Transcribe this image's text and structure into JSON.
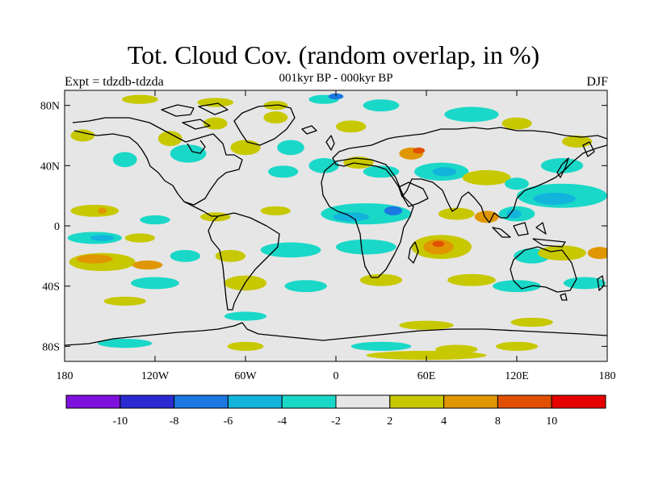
{
  "header": {
    "title": "Tot. Cloud Cov. (random overlap, in %)",
    "subtitle": "001kyr BP - 000kyr BP",
    "left_label": "Expt = tdzdb-tdzda",
    "right_label": "DJF"
  },
  "map": {
    "projection": "equirectangular",
    "lon_range": [
      -180,
      180
    ],
    "lat_range": [
      -90,
      90
    ],
    "background": "#e6e6e6",
    "lat_ticks": [
      {
        "value": 80,
        "label": "80N"
      },
      {
        "value": 40,
        "label": "40N"
      },
      {
        "value": 0,
        "label": "0"
      },
      {
        "value": -40,
        "label": "40S"
      },
      {
        "value": -80,
        "label": "80S"
      }
    ],
    "lon_ticks": [
      {
        "value": -180,
        "label": "180"
      },
      {
        "value": -120,
        "label": "120W"
      },
      {
        "value": -60,
        "label": "60W"
      },
      {
        "value": 0,
        "label": "0"
      },
      {
        "value": 60,
        "label": "60E"
      },
      {
        "value": 120,
        "label": "120E"
      },
      {
        "value": 180,
        "label": "180"
      }
    ]
  },
  "colorbar": {
    "colors": [
      "#7e12dc",
      "#2a2ad0",
      "#1a78e0",
      "#12b4dc",
      "#1ad8c8",
      "#e6e6e6",
      "#c8c800",
      "#e09600",
      "#e05000",
      "#e60000"
    ],
    "labels": [
      "-10",
      "-8",
      "-6",
      "-4",
      "-2",
      "2",
      "4",
      "8",
      "10"
    ]
  },
  "anomaly_regions": [
    {
      "lon": -168,
      "lat": 60,
      "rx": 8,
      "ry": 4,
      "cls": "pos1"
    },
    {
      "lon": -130,
      "lat": 84,
      "rx": 12,
      "ry": 3,
      "cls": "pos1"
    },
    {
      "lon": -80,
      "lat": 82,
      "rx": 12,
      "ry": 3,
      "cls": "pos1"
    },
    {
      "lon": -40,
      "lat": 80,
      "rx": 8,
      "ry": 3,
      "cls": "pos1"
    },
    {
      "lon": -8,
      "lat": 84,
      "rx": 10,
      "ry": 3,
      "cls": "neg1"
    },
    {
      "lon": 0,
      "lat": 86,
      "rx": 5,
      "ry": 2,
      "cls": "neg3"
    },
    {
      "lon": 30,
      "lat": 80,
      "rx": 12,
      "ry": 4,
      "cls": "neg1"
    },
    {
      "lon": 90,
      "lat": 74,
      "rx": 18,
      "ry": 5,
      "cls": "neg1"
    },
    {
      "lon": 120,
      "lat": 68,
      "rx": 10,
      "ry": 4,
      "cls": "pos1"
    },
    {
      "lon": -110,
      "lat": 58,
      "rx": 8,
      "ry": 5,
      "cls": "pos1"
    },
    {
      "lon": -80,
      "lat": 68,
      "rx": 8,
      "ry": 4,
      "cls": "pos1"
    },
    {
      "lon": -40,
      "lat": 72,
      "rx": 8,
      "ry": 4,
      "cls": "pos1"
    },
    {
      "lon": 10,
      "lat": 66,
      "rx": 10,
      "ry": 4,
      "cls": "pos1"
    },
    {
      "lon": -140,
      "lat": 44,
      "rx": 8,
      "ry": 5,
      "cls": "neg1"
    },
    {
      "lon": -98,
      "lat": 48,
      "rx": 12,
      "ry": 6,
      "cls": "neg1"
    },
    {
      "lon": -60,
      "lat": 52,
      "rx": 10,
      "ry": 5,
      "cls": "pos1"
    },
    {
      "lon": -30,
      "lat": 52,
      "rx": 9,
      "ry": 5,
      "cls": "neg1"
    },
    {
      "lon": -35,
      "lat": 36,
      "rx": 10,
      "ry": 4,
      "cls": "neg1"
    },
    {
      "lon": -8,
      "lat": 40,
      "rx": 10,
      "ry": 5,
      "cls": "neg1"
    },
    {
      "lon": 15,
      "lat": 42,
      "rx": 10,
      "ry": 4,
      "cls": "pos1"
    },
    {
      "lon": 30,
      "lat": 36,
      "rx": 12,
      "ry": 4,
      "cls": "neg1"
    },
    {
      "lon": 50,
      "lat": 48,
      "rx": 8,
      "ry": 4,
      "cls": "pos2"
    },
    {
      "lon": 55,
      "lat": 50,
      "rx": 4,
      "ry": 2,
      "cls": "pos3"
    },
    {
      "lon": 70,
      "lat": 36,
      "rx": 18,
      "ry": 6,
      "cls": "neg1"
    },
    {
      "lon": 72,
      "lat": 36,
      "rx": 8,
      "ry": 3,
      "cls": "neg2"
    },
    {
      "lon": 100,
      "lat": 32,
      "rx": 16,
      "ry": 5,
      "cls": "pos1"
    },
    {
      "lon": 120,
      "lat": 28,
      "rx": 8,
      "ry": 4,
      "cls": "neg1"
    },
    {
      "lon": 150,
      "lat": 20,
      "rx": 30,
      "ry": 8,
      "cls": "neg1"
    },
    {
      "lon": 145,
      "lat": 18,
      "rx": 14,
      "ry": 4,
      "cls": "neg2"
    },
    {
      "lon": 150,
      "lat": 40,
      "rx": 14,
      "ry": 5,
      "cls": "neg1"
    },
    {
      "lon": 160,
      "lat": 56,
      "rx": 10,
      "ry": 4,
      "cls": "pos1"
    },
    {
      "lon": -160,
      "lat": 10,
      "rx": 16,
      "ry": 4,
      "cls": "pos1"
    },
    {
      "lon": -155,
      "lat": 10,
      "rx": 3,
      "ry": 2,
      "cls": "pos2"
    },
    {
      "lon": -120,
      "lat": 4,
      "rx": 10,
      "ry": 3,
      "cls": "neg1"
    },
    {
      "lon": -80,
      "lat": 6,
      "rx": 10,
      "ry": 3,
      "cls": "pos1"
    },
    {
      "lon": -40,
      "lat": 10,
      "rx": 10,
      "ry": 3,
      "cls": "pos1"
    },
    {
      "lon": 20,
      "lat": 8,
      "rx": 30,
      "ry": 7,
      "cls": "neg1"
    },
    {
      "lon": 10,
      "lat": 6,
      "rx": 12,
      "ry": 3,
      "cls": "neg2"
    },
    {
      "lon": 38,
      "lat": 10,
      "rx": 6,
      "ry": 3,
      "cls": "neg3"
    },
    {
      "lon": 80,
      "lat": 8,
      "rx": 12,
      "ry": 4,
      "cls": "pos1"
    },
    {
      "lon": 100,
      "lat": 6,
      "rx": 8,
      "ry": 4,
      "cls": "pos2"
    },
    {
      "lon": 120,
      "lat": 8,
      "rx": 12,
      "ry": 5,
      "cls": "neg1"
    },
    {
      "lon": 118,
      "lat": 8,
      "rx": 5,
      "ry": 3,
      "cls": "neg2"
    },
    {
      "lon": -160,
      "lat": -8,
      "rx": 18,
      "ry": 4,
      "cls": "neg1"
    },
    {
      "lon": -155,
      "lat": -8,
      "rx": 8,
      "ry": 2,
      "cls": "neg2"
    },
    {
      "lon": -130,
      "lat": -8,
      "rx": 10,
      "ry": 3,
      "cls": "pos1"
    },
    {
      "lon": -70,
      "lat": -20,
      "rx": 10,
      "ry": 4,
      "cls": "pos1"
    },
    {
      "lon": -30,
      "lat": -16,
      "rx": 20,
      "ry": 5,
      "cls": "neg1"
    },
    {
      "lon": 20,
      "lat": -14,
      "rx": 20,
      "ry": 5,
      "cls": "neg1"
    },
    {
      "lon": 70,
      "lat": -14,
      "rx": 20,
      "ry": 8,
      "cls": "pos1"
    },
    {
      "lon": 68,
      "lat": -14,
      "rx": 10,
      "ry": 5,
      "cls": "pos2"
    },
    {
      "lon": 68,
      "lat": -12,
      "rx": 4,
      "ry": 2,
      "cls": "pos3"
    },
    {
      "lon": 130,
      "lat": -20,
      "rx": 12,
      "ry": 5,
      "cls": "neg1"
    },
    {
      "lon": 150,
      "lat": -18,
      "rx": 16,
      "ry": 5,
      "cls": "pos1"
    },
    {
      "lon": 175,
      "lat": -18,
      "rx": 8,
      "ry": 4,
      "cls": "pos2"
    },
    {
      "lon": -155,
      "lat": -24,
      "rx": 22,
      "ry": 6,
      "cls": "pos1"
    },
    {
      "lon": -160,
      "lat": -22,
      "rx": 12,
      "ry": 3,
      "cls": "pos2"
    },
    {
      "lon": -125,
      "lat": -26,
      "rx": 10,
      "ry": 3,
      "cls": "pos2"
    },
    {
      "lon": -100,
      "lat": -20,
      "rx": 10,
      "ry": 4,
      "cls": "neg1"
    },
    {
      "lon": -120,
      "lat": -38,
      "rx": 16,
      "ry": 4,
      "cls": "neg1"
    },
    {
      "lon": -60,
      "lat": -38,
      "rx": 14,
      "ry": 5,
      "cls": "pos1"
    },
    {
      "lon": -20,
      "lat": -40,
      "rx": 14,
      "ry": 4,
      "cls": "neg1"
    },
    {
      "lon": 30,
      "lat": -36,
      "rx": 14,
      "ry": 4,
      "cls": "pos1"
    },
    {
      "lon": 90,
      "lat": -36,
      "rx": 16,
      "ry": 4,
      "cls": "pos1"
    },
    {
      "lon": 120,
      "lat": -40,
      "rx": 16,
      "ry": 4,
      "cls": "neg1"
    },
    {
      "lon": 165,
      "lat": -38,
      "rx": 14,
      "ry": 4,
      "cls": "neg1"
    },
    {
      "lon": -140,
      "lat": -50,
      "rx": 14,
      "ry": 3,
      "cls": "pos1"
    },
    {
      "lon": -60,
      "lat": -60,
      "rx": 14,
      "ry": 3,
      "cls": "neg1"
    },
    {
      "lon": 60,
      "lat": -66,
      "rx": 18,
      "ry": 3,
      "cls": "pos1"
    },
    {
      "lon": 130,
      "lat": -64,
      "rx": 14,
      "ry": 3,
      "cls": "pos1"
    },
    {
      "lon": -140,
      "lat": -78,
      "rx": 18,
      "ry": 3,
      "cls": "neg1"
    },
    {
      "lon": -60,
      "lat": -80,
      "rx": 12,
      "ry": 3,
      "cls": "pos1"
    },
    {
      "lon": 30,
      "lat": -80,
      "rx": 20,
      "ry": 3,
      "cls": "neg1"
    },
    {
      "lon": 80,
      "lat": -82,
      "rx": 14,
      "ry": 3,
      "cls": "pos1"
    },
    {
      "lon": 120,
      "lat": -80,
      "rx": 14,
      "ry": 3,
      "cls": "pos1"
    },
    {
      "lon": 60,
      "lat": -86,
      "rx": 40,
      "ry": 3,
      "cls": "pos1"
    }
  ]
}
